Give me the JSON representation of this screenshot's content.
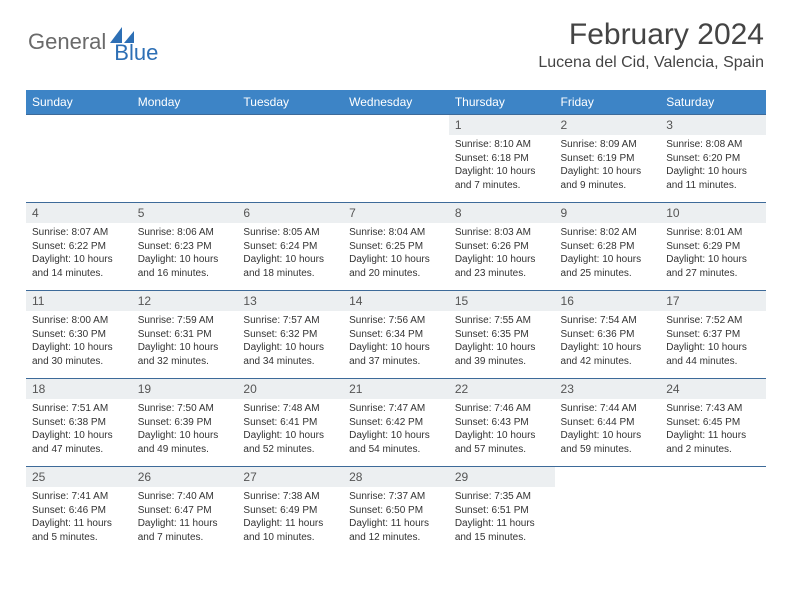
{
  "logo": {
    "part1": "General",
    "part2": "Blue"
  },
  "title": "February 2024",
  "location": "Lucena del Cid, Valencia, Spain",
  "colors": {
    "header_bg": "#3d84c6",
    "header_text": "#ffffff",
    "daynum_bg": "#eceff1",
    "row_border": "#3d6a99",
    "logo_gray": "#6a6a6a",
    "logo_blue": "#2d6fb5",
    "body_text": "#333333",
    "page_bg": "#ffffff"
  },
  "typography": {
    "title_fontsize": 30,
    "location_fontsize": 16,
    "dayheader_fontsize": 12,
    "daynum_fontsize": 12,
    "body_fontsize": 10
  },
  "dayHeaders": [
    "Sunday",
    "Monday",
    "Tuesday",
    "Wednesday",
    "Thursday",
    "Friday",
    "Saturday"
  ],
  "weeks": [
    [
      {
        "n": "",
        "sr": "",
        "ss": "",
        "dl": ""
      },
      {
        "n": "",
        "sr": "",
        "ss": "",
        "dl": ""
      },
      {
        "n": "",
        "sr": "",
        "ss": "",
        "dl": ""
      },
      {
        "n": "",
        "sr": "",
        "ss": "",
        "dl": ""
      },
      {
        "n": "1",
        "sr": "Sunrise: 8:10 AM",
        "ss": "Sunset: 6:18 PM",
        "dl": "Daylight: 10 hours and 7 minutes."
      },
      {
        "n": "2",
        "sr": "Sunrise: 8:09 AM",
        "ss": "Sunset: 6:19 PM",
        "dl": "Daylight: 10 hours and 9 minutes."
      },
      {
        "n": "3",
        "sr": "Sunrise: 8:08 AM",
        "ss": "Sunset: 6:20 PM",
        "dl": "Daylight: 10 hours and 11 minutes."
      }
    ],
    [
      {
        "n": "4",
        "sr": "Sunrise: 8:07 AM",
        "ss": "Sunset: 6:22 PM",
        "dl": "Daylight: 10 hours and 14 minutes."
      },
      {
        "n": "5",
        "sr": "Sunrise: 8:06 AM",
        "ss": "Sunset: 6:23 PM",
        "dl": "Daylight: 10 hours and 16 minutes."
      },
      {
        "n": "6",
        "sr": "Sunrise: 8:05 AM",
        "ss": "Sunset: 6:24 PM",
        "dl": "Daylight: 10 hours and 18 minutes."
      },
      {
        "n": "7",
        "sr": "Sunrise: 8:04 AM",
        "ss": "Sunset: 6:25 PM",
        "dl": "Daylight: 10 hours and 20 minutes."
      },
      {
        "n": "8",
        "sr": "Sunrise: 8:03 AM",
        "ss": "Sunset: 6:26 PM",
        "dl": "Daylight: 10 hours and 23 minutes."
      },
      {
        "n": "9",
        "sr": "Sunrise: 8:02 AM",
        "ss": "Sunset: 6:28 PM",
        "dl": "Daylight: 10 hours and 25 minutes."
      },
      {
        "n": "10",
        "sr": "Sunrise: 8:01 AM",
        "ss": "Sunset: 6:29 PM",
        "dl": "Daylight: 10 hours and 27 minutes."
      }
    ],
    [
      {
        "n": "11",
        "sr": "Sunrise: 8:00 AM",
        "ss": "Sunset: 6:30 PM",
        "dl": "Daylight: 10 hours and 30 minutes."
      },
      {
        "n": "12",
        "sr": "Sunrise: 7:59 AM",
        "ss": "Sunset: 6:31 PM",
        "dl": "Daylight: 10 hours and 32 minutes."
      },
      {
        "n": "13",
        "sr": "Sunrise: 7:57 AM",
        "ss": "Sunset: 6:32 PM",
        "dl": "Daylight: 10 hours and 34 minutes."
      },
      {
        "n": "14",
        "sr": "Sunrise: 7:56 AM",
        "ss": "Sunset: 6:34 PM",
        "dl": "Daylight: 10 hours and 37 minutes."
      },
      {
        "n": "15",
        "sr": "Sunrise: 7:55 AM",
        "ss": "Sunset: 6:35 PM",
        "dl": "Daylight: 10 hours and 39 minutes."
      },
      {
        "n": "16",
        "sr": "Sunrise: 7:54 AM",
        "ss": "Sunset: 6:36 PM",
        "dl": "Daylight: 10 hours and 42 minutes."
      },
      {
        "n": "17",
        "sr": "Sunrise: 7:52 AM",
        "ss": "Sunset: 6:37 PM",
        "dl": "Daylight: 10 hours and 44 minutes."
      }
    ],
    [
      {
        "n": "18",
        "sr": "Sunrise: 7:51 AM",
        "ss": "Sunset: 6:38 PM",
        "dl": "Daylight: 10 hours and 47 minutes."
      },
      {
        "n": "19",
        "sr": "Sunrise: 7:50 AM",
        "ss": "Sunset: 6:39 PM",
        "dl": "Daylight: 10 hours and 49 minutes."
      },
      {
        "n": "20",
        "sr": "Sunrise: 7:48 AM",
        "ss": "Sunset: 6:41 PM",
        "dl": "Daylight: 10 hours and 52 minutes."
      },
      {
        "n": "21",
        "sr": "Sunrise: 7:47 AM",
        "ss": "Sunset: 6:42 PM",
        "dl": "Daylight: 10 hours and 54 minutes."
      },
      {
        "n": "22",
        "sr": "Sunrise: 7:46 AM",
        "ss": "Sunset: 6:43 PM",
        "dl": "Daylight: 10 hours and 57 minutes."
      },
      {
        "n": "23",
        "sr": "Sunrise: 7:44 AM",
        "ss": "Sunset: 6:44 PM",
        "dl": "Daylight: 10 hours and 59 minutes."
      },
      {
        "n": "24",
        "sr": "Sunrise: 7:43 AM",
        "ss": "Sunset: 6:45 PM",
        "dl": "Daylight: 11 hours and 2 minutes."
      }
    ],
    [
      {
        "n": "25",
        "sr": "Sunrise: 7:41 AM",
        "ss": "Sunset: 6:46 PM",
        "dl": "Daylight: 11 hours and 5 minutes."
      },
      {
        "n": "26",
        "sr": "Sunrise: 7:40 AM",
        "ss": "Sunset: 6:47 PM",
        "dl": "Daylight: 11 hours and 7 minutes."
      },
      {
        "n": "27",
        "sr": "Sunrise: 7:38 AM",
        "ss": "Sunset: 6:49 PM",
        "dl": "Daylight: 11 hours and 10 minutes."
      },
      {
        "n": "28",
        "sr": "Sunrise: 7:37 AM",
        "ss": "Sunset: 6:50 PM",
        "dl": "Daylight: 11 hours and 12 minutes."
      },
      {
        "n": "29",
        "sr": "Sunrise: 7:35 AM",
        "ss": "Sunset: 6:51 PM",
        "dl": "Daylight: 11 hours and 15 minutes."
      },
      {
        "n": "",
        "sr": "",
        "ss": "",
        "dl": ""
      },
      {
        "n": "",
        "sr": "",
        "ss": "",
        "dl": ""
      }
    ]
  ]
}
